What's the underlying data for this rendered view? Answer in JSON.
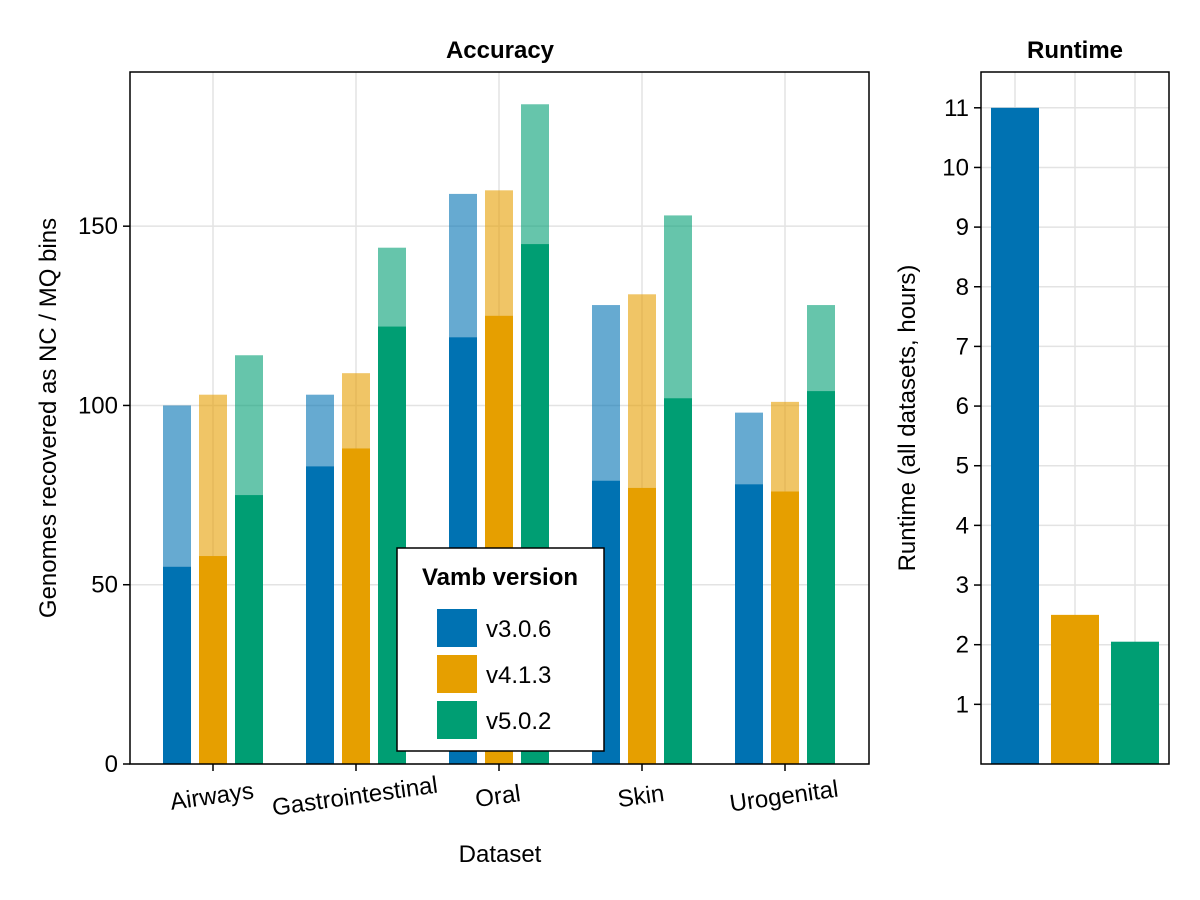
{
  "chart_data": [
    {
      "type": "bar",
      "title": "Accuracy",
      "xlabel": "Dataset",
      "ylabel": "Genomes recovered as NC / MQ bins",
      "categories": [
        "Airways",
        "Gastrointestinal",
        "Oral",
        "Skin",
        "Urogenital"
      ],
      "ylim": [
        0,
        193
      ],
      "yticks": [
        0,
        50,
        100,
        150
      ],
      "grid": true,
      "stacked_layers": [
        "NC",
        "MQ"
      ],
      "series": [
        {
          "name": "v3.0.6",
          "color": "#0072b2",
          "nc": [
            55,
            83,
            119,
            79,
            78
          ],
          "mq_total": [
            100,
            103,
            159,
            128,
            98
          ]
        },
        {
          "name": "v4.1.3",
          "color": "#e69f00",
          "nc": [
            58,
            88,
            125,
            77,
            76
          ],
          "mq_total": [
            103,
            109,
            160,
            131,
            101
          ]
        },
        {
          "name": "v5.0.2",
          "color": "#009e73",
          "nc": [
            75,
            122,
            145,
            102,
            104
          ],
          "mq_total": [
            114,
            144,
            184,
            153,
            128
          ]
        }
      ],
      "legend": {
        "title": "Vamb version",
        "placement": "bottom-center",
        "entries": [
          "v3.0.6",
          "v4.1.3",
          "v5.0.2"
        ]
      }
    },
    {
      "type": "bar",
      "title": "Runtime",
      "xlabel": "",
      "ylabel": "Runtime (all datasets, hours)",
      "ylim": [
        0,
        11.6
      ],
      "yticks": [
        1,
        2,
        3,
        4,
        5,
        6,
        7,
        8,
        9,
        10,
        11
      ],
      "grid": true,
      "series": [
        {
          "name": "v3.0.6",
          "color": "#0072b2",
          "value": 11.0
        },
        {
          "name": "v4.1.3",
          "color": "#e69f00",
          "value": 2.5
        },
        {
          "name": "v5.0.2",
          "color": "#009e73",
          "value": 2.05
        }
      ]
    }
  ]
}
